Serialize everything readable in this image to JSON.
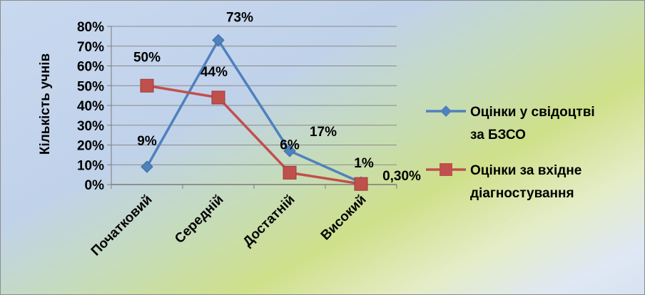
{
  "chart_data": {
    "type": "line",
    "ylabel": "Кількість учнів",
    "xlabel": "",
    "ylim": [
      0,
      80
    ],
    "yticks": [
      "0%",
      "10%",
      "20%",
      "30%",
      "40%",
      "50%",
      "60%",
      "70%",
      "80%"
    ],
    "categories": [
      "Початковий",
      "Середній",
      "Достатній",
      "Високий"
    ],
    "grid": true,
    "legend_position": "right",
    "series": [
      {
        "name": "Оцінки у свідоцтві за БЗСО",
        "name_lines": [
          "Оцінки у свідоцтві",
          "за БЗСО"
        ],
        "values": [
          9,
          73,
          17,
          1
        ],
        "labels": [
          "9%",
          "73%",
          "17%",
          "1%"
        ],
        "color": "#4f81bd",
        "marker": "diamond"
      },
      {
        "name": "Оцінки за вхідне діагностування",
        "name_lines": [
          "Оцінки за вхідне",
          "діагностування"
        ],
        "values": [
          50,
          44,
          6,
          0.3
        ],
        "labels": [
          "50%",
          "44%",
          "6%",
          "0,30%"
        ],
        "color": "#c0504d",
        "marker": "square"
      }
    ]
  }
}
